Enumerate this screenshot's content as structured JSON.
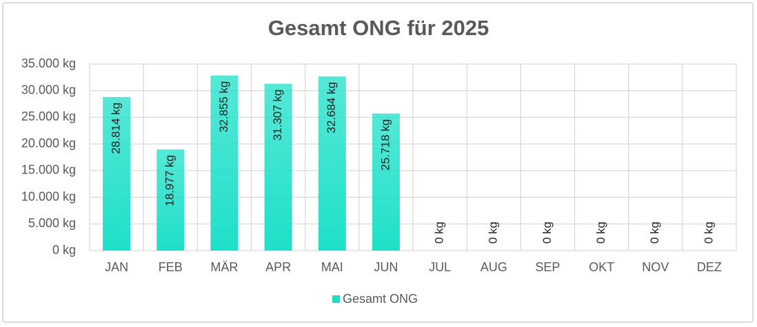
{
  "chart_data": {
    "type": "bar",
    "title": "Gesamt ONG für 2025",
    "categories": [
      "JAN",
      "FEB",
      "MÄR",
      "APR",
      "MAI",
      "JUN",
      "JUL",
      "AUG",
      "SEP",
      "OKT",
      "NOV",
      "DEZ"
    ],
    "series": [
      {
        "name": "Gesamt ONG",
        "color": "#1ee0c9",
        "values": [
          28814,
          18977,
          32855,
          31307,
          32684,
          25718,
          0,
          0,
          0,
          0,
          0,
          0
        ],
        "value_labels": [
          "28.814 kg",
          "18.977 kg",
          "32.855 kg",
          "31.307 kg",
          "32.684 kg",
          "25.718 kg",
          "0 kg",
          "0 kg",
          "0 kg",
          "0 kg",
          "0 kg",
          "0 kg"
        ]
      }
    ],
    "ylim": [
      0,
      35000
    ],
    "yticks": [
      {
        "value": 0,
        "label": "0 kg"
      },
      {
        "value": 5000,
        "label": "5.000 kg"
      },
      {
        "value": 10000,
        "label": "10.000 kg"
      },
      {
        "value": 15000,
        "label": "15.000 kg"
      },
      {
        "value": 20000,
        "label": "20.000 kg"
      },
      {
        "value": 25000,
        "label": "25.000 kg"
      },
      {
        "value": 30000,
        "label": "30.000 kg"
      },
      {
        "value": 35000,
        "label": "35.000 kg"
      }
    ],
    "grid": true,
    "legend": "bottom"
  }
}
